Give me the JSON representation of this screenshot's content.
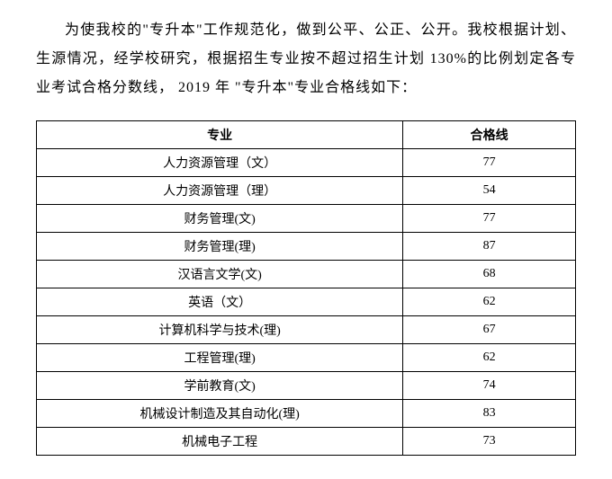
{
  "paragraph": "为使我校的\"专升本\"工作规范化，做到公平、公正、公开。我校根据计划、生源情况，经学校研究，根据招生专业按不超过招生计划 130%的比例划定各专业考试合格分数线， 2019 年 \"专升本\"专业合格线如下：",
  "table": {
    "columns": [
      "专业",
      "合格线"
    ],
    "rows": [
      [
        "人力资源管理（文）",
        "77"
      ],
      [
        "人力资源管理（理）",
        "54"
      ],
      [
        "财务管理(文)",
        "77"
      ],
      [
        "财务管理(理)",
        "87"
      ],
      [
        "汉语言文学(文)",
        "68"
      ],
      [
        "英语（文）",
        "62"
      ],
      [
        "计算机科学与技术(理)",
        "67"
      ],
      [
        "工程管理(理)",
        "62"
      ],
      [
        "学前教育(文)",
        "74"
      ],
      [
        "机械设计制造及其自动化(理)",
        "83"
      ],
      [
        "机械电子工程",
        "73"
      ]
    ],
    "border_color": "#000000",
    "background_color": "#ffffff",
    "header_fontsize": 14,
    "cell_fontsize": 14,
    "text_color": "#000000"
  }
}
